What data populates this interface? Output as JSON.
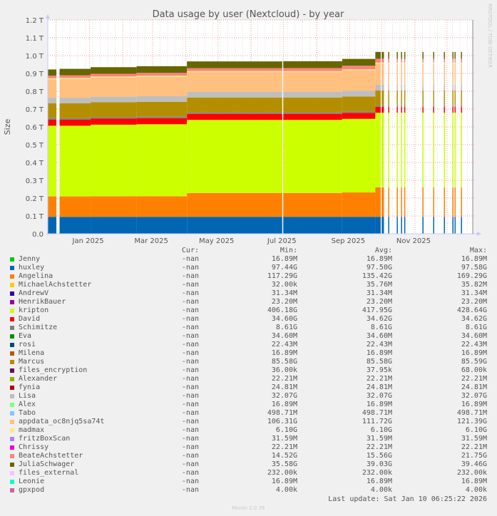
{
  "chart_data": {
    "type": "area",
    "stacked": true,
    "title": "Data usage by user (Nextcloud) - by year",
    "ylabel": "Size",
    "side_label": "RRDTOOL / TOBI OETIKER",
    "yticks": [
      "0.0",
      "0.1 T",
      "0.2 T",
      "0.3 T",
      "0.4 T",
      "0.5 T",
      "0.6 T",
      "0.7 T",
      "0.8 T",
      "0.9 T",
      "1.0 T",
      "1.1 T",
      "1.2 T"
    ],
    "ylim_T": [
      0,
      1.2
    ],
    "xlim": [
      "2024-11-23",
      "2025-12-25"
    ],
    "xticks": [
      {
        "label": "Jan 2025",
        "date": "2025-01-01"
      },
      {
        "label": "Mar 2025",
        "date": "2025-03-01"
      },
      {
        "label": "May 2025",
        "date": "2025-05-01"
      },
      {
        "label": "Jul 2025",
        "date": "2025-07-01"
      },
      {
        "label": "Sep 2025",
        "date": "2025-09-01"
      },
      {
        "label": "Nov 2025",
        "date": "2025-11-01"
      }
    ],
    "grid": true,
    "stack_order": [
      "huxley",
      "Angelina",
      "kripton",
      "David",
      "Schimitze",
      "Marcus",
      "Lisa",
      "appdata_oc8njq5sa74t",
      "madmax",
      "BeateAchstetter",
      "JuliaSchwager"
    ],
    "stack_colors": [
      "#0066b3",
      "#ff8000",
      "#ccff00",
      "#ff0000",
      "#808080",
      "#b38f00",
      "#bebebe",
      "#ffc080",
      "#ffe680",
      "#ff8080",
      "#666600"
    ],
    "segments_gb": [
      {
        "from": "2024-11-23",
        "to": "2024-12-01",
        "values": [
          97.4,
          117.3,
          406.2,
          34.6,
          8.6,
          85.6,
          32.1,
          106.3,
          6.1,
          14.5,
          35.6
        ]
      },
      {
        "from": "2024-12-04",
        "to": "2025-01-02",
        "values": [
          97.4,
          117.3,
          406.2,
          34.6,
          8.6,
          85.6,
          32.1,
          108,
          6.1,
          15,
          37
        ]
      },
      {
        "from": "2025-01-02",
        "to": "2025-02-14",
        "values": [
          97.5,
          117.5,
          412,
          34.6,
          8.6,
          85.6,
          32.1,
          110,
          6.1,
          15.5,
          38
        ]
      },
      {
        "from": "2025-02-14",
        "to": "2025-04-02",
        "values": [
          97.5,
          118,
          414,
          34.6,
          8.6,
          85.6,
          32.1,
          112,
          6.1,
          16,
          38.5
        ]
      },
      {
        "from": "2025-04-02",
        "to": "2025-06-30",
        "values": [
          97.5,
          137,
          420,
          34.6,
          8.6,
          85.6,
          32.1,
          114,
          6.1,
          16,
          39
        ]
      },
      {
        "from": "2025-07-01",
        "to": "2025-08-25",
        "values": [
          97.5,
          137,
          420,
          34.6,
          8.6,
          85.6,
          32.1,
          114,
          6.1,
          17,
          39
        ]
      },
      {
        "from": "2025-08-25",
        "to": "2025-09-25",
        "values": [
          97.5,
          140,
          423,
          34.6,
          8.6,
          85.6,
          32.1,
          118,
          6.1,
          20,
          39.4
        ]
      },
      {
        "from": "2025-09-25",
        "to": "2025-09-30",
        "values": [
          97.6,
          169.3,
          428.6,
          34.6,
          8.6,
          85.6,
          32.1,
          121.4,
          6.1,
          21.75,
          39.5
        ]
      },
      {
        "from": "2025-10-01",
        "to": "2025-10-03",
        "values": [
          97.6,
          169.3,
          428.6,
          34.6,
          8.6,
          85.6,
          32.1,
          121.4,
          6.1,
          21.75,
          39.5
        ]
      },
      {
        "from": "2025-10-07",
        "to": "2025-10-08",
        "values": [
          97.6,
          169.3,
          428.6,
          34.6,
          8.6,
          85.6,
          32.1,
          121.4,
          6.1,
          21.75,
          39.5
        ]
      },
      {
        "from": "2025-10-15",
        "to": "2025-10-16",
        "values": [
          97.6,
          169.3,
          428.6,
          34.6,
          8.6,
          85.6,
          32.1,
          121.4,
          6.1,
          21.75,
          39.5
        ]
      },
      {
        "from": "2025-10-19",
        "to": "2025-10-20",
        "values": [
          97.6,
          169.3,
          428.6,
          34.6,
          8.6,
          85.6,
          32.1,
          121.4,
          6.1,
          21.75,
          39.5
        ]
      },
      {
        "from": "2025-10-22",
        "to": "2025-10-23",
        "values": [
          97.6,
          169.3,
          428.6,
          34.6,
          8.6,
          85.6,
          32.1,
          121.4,
          6.1,
          21.75,
          39.5
        ]
      },
      {
        "from": "2025-11-08",
        "to": "2025-11-09",
        "values": [
          97.6,
          169.3,
          428.6,
          34.6,
          8.6,
          85.6,
          32.1,
          121.4,
          6.1,
          21.75,
          39.5
        ]
      },
      {
        "from": "2025-11-18",
        "to": "2025-11-19",
        "values": [
          97.6,
          169.3,
          428.6,
          34.6,
          8.6,
          85.6,
          32.1,
          121.4,
          6.1,
          21.75,
          39.5
        ]
      },
      {
        "from": "2025-11-28",
        "to": "2025-11-29",
        "values": [
          97.6,
          169.3,
          428.6,
          34.6,
          8.6,
          85.6,
          32.1,
          121.4,
          6.1,
          21.75,
          39.5
        ]
      },
      {
        "from": "2025-12-06",
        "to": "2025-12-07",
        "values": [
          97.6,
          169.3,
          428.6,
          34.6,
          8.6,
          85.6,
          32.1,
          121.4,
          6.1,
          21.75,
          39.5
        ]
      },
      {
        "from": "2025-12-08",
        "to": "2025-12-09",
        "values": [
          97.6,
          169.3,
          428.6,
          34.6,
          8.6,
          85.6,
          32.1,
          121.4,
          6.1,
          21.75,
          39.5
        ]
      },
      {
        "from": "2025-12-14",
        "to": "2025-12-15",
        "values": [
          97.6,
          169.3,
          428.6,
          34.6,
          8.6,
          85.6,
          32.1,
          121.4,
          6.1,
          21.75,
          39.5
        ]
      }
    ]
  },
  "legend": {
    "headers": {
      "cur": "Cur:",
      "min": "Min:",
      "avg": "Avg:",
      "max": "Max:"
    },
    "rows": [
      {
        "name": "Jenny",
        "color": "#00cc00",
        "cur": "-nan",
        "min": "16.89M",
        "avg": "16.89M",
        "max": "16.89M"
      },
      {
        "name": "huxley",
        "color": "#0066b3",
        "cur": "-nan",
        "min": "97.44G",
        "avg": "97.50G",
        "max": "97.58G"
      },
      {
        "name": "Angelina",
        "color": "#ff8000",
        "cur": "-nan",
        "min": "117.29G",
        "avg": "135.42G",
        "max": "169.29G"
      },
      {
        "name": "MichaelAchstetter",
        "color": "#ffcc00",
        "cur": "-nan",
        "min": "32.00k",
        "avg": "35.76M",
        "max": "35.82M"
      },
      {
        "name": "AndrewV",
        "color": "#330099",
        "cur": "-nan",
        "min": "31.34M",
        "avg": "31.34M",
        "max": "31.34M"
      },
      {
        "name": "HenrikBauer",
        "color": "#990099",
        "cur": "-nan",
        "min": "23.20M",
        "avg": "23.20M",
        "max": "23.20M"
      },
      {
        "name": "kripton",
        "color": "#ccff00",
        "cur": "-nan",
        "min": "406.18G",
        "avg": "417.95G",
        "max": "428.64G"
      },
      {
        "name": "David",
        "color": "#ff0000",
        "cur": "-nan",
        "min": "34.60G",
        "avg": "34.62G",
        "max": "34.62G"
      },
      {
        "name": "Schimitze",
        "color": "#808080",
        "cur": "-nan",
        "min": "8.61G",
        "avg": "8.61G",
        "max": "8.61G"
      },
      {
        "name": "Eva",
        "color": "#008f00",
        "cur": "-nan",
        "min": "34.60M",
        "avg": "34.60M",
        "max": "34.60M"
      },
      {
        "name": "rosi",
        "color": "#00487d",
        "cur": "-nan",
        "min": "22.43M",
        "avg": "22.43M",
        "max": "22.43M"
      },
      {
        "name": "Milena",
        "color": "#b35a00",
        "cur": "-nan",
        "min": "16.89M",
        "avg": "16.89M",
        "max": "16.89M"
      },
      {
        "name": "Marcus",
        "color": "#b38f00",
        "cur": "-nan",
        "min": "85.58G",
        "avg": "85.58G",
        "max": "85.59G"
      },
      {
        "name": "files_encryption",
        "color": "#6b006b",
        "cur": "-nan",
        "min": "36.00k",
        "avg": "37.95k",
        "max": "68.00k"
      },
      {
        "name": "Alexander",
        "color": "#8fb300",
        "cur": "-nan",
        "min": "22.21M",
        "avg": "22.21M",
        "max": "22.21M"
      },
      {
        "name": "fynia",
        "color": "#b30000",
        "cur": "-nan",
        "min": "24.81M",
        "avg": "24.81M",
        "max": "24.81M"
      },
      {
        "name": "Lisa",
        "color": "#bebebe",
        "cur": "-nan",
        "min": "32.07G",
        "avg": "32.07G",
        "max": "32.07G"
      },
      {
        "name": "Alex",
        "color": "#80ff80",
        "cur": "-nan",
        "min": "16.89M",
        "avg": "16.89M",
        "max": "16.89M"
      },
      {
        "name": "Tabo",
        "color": "#80c9ff",
        "cur": "-nan",
        "min": "498.71M",
        "avg": "498.71M",
        "max": "498.71M"
      },
      {
        "name": "appdata_oc8njq5sa74t",
        "color": "#ffc080",
        "cur": "-nan",
        "min": "106.31G",
        "avg": "111.72G",
        "max": "121.39G"
      },
      {
        "name": "madmax",
        "color": "#ffe680",
        "cur": "-nan",
        "min": "6.10G",
        "avg": "6.10G",
        "max": "6.10G"
      },
      {
        "name": "fritzBoxScan",
        "color": "#aa80ff",
        "cur": "-nan",
        "min": "31.59M",
        "avg": "31.59M",
        "max": "31.59M"
      },
      {
        "name": "Chrissy",
        "color": "#ee00cc",
        "cur": "-nan",
        "min": "22.21M",
        "avg": "22.21M",
        "max": "22.21M"
      },
      {
        "name": "BeateAchstetter",
        "color": "#ff8080",
        "cur": "-nan",
        "min": "14.52G",
        "avg": "15.56G",
        "max": "21.75G"
      },
      {
        "name": "JuliaSchwager",
        "color": "#666600",
        "cur": "-nan",
        "min": "35.58G",
        "avg": "39.03G",
        "max": "39.46G"
      },
      {
        "name": "files_external",
        "color": "#ffbfff",
        "cur": "-nan",
        "min": "232.00k",
        "avg": "232.00k",
        "max": "232.00k"
      },
      {
        "name": "Leonie",
        "color": "#00ffcc",
        "cur": "-nan",
        "min": "16.89M",
        "avg": "16.89M",
        "max": "16.89M"
      },
      {
        "name": "gpxpod",
        "color": "#cc6699",
        "cur": "-nan",
        "min": "4.00k",
        "avg": "4.00k",
        "max": "4.00k"
      }
    ],
    "last_update": "Last update: Sat Jan 10 06:25:22 2026"
  },
  "footer": {
    "version": "Munin 2.0.76"
  }
}
